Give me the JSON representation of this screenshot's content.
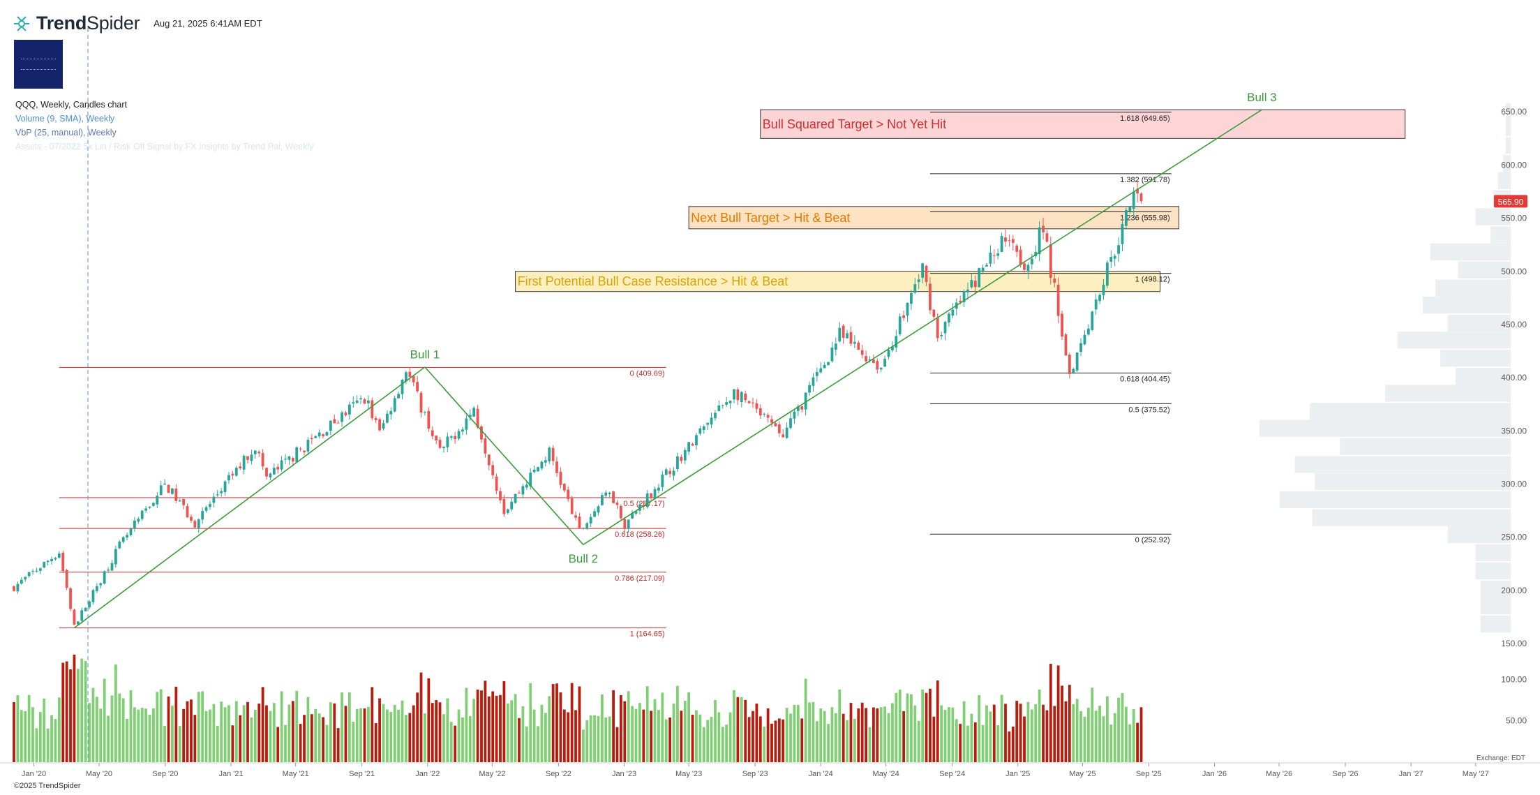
{
  "header": {
    "brand_bold": "Trend",
    "brand_light": "Spider",
    "timestamp": "Aug 21, 2025 6:41AM EDT",
    "copyright": "©2025 TrendSpider",
    "exchange": "Exchange: EDT"
  },
  "legend": {
    "chart": "QQQ, Weekly, Candles chart",
    "volume": "Volume (9, SMA), Weekly",
    "vbp": "VbP (25, manual), Weekly",
    "signal": "Assets - 07/2022 5x Lin / Risk Off Signal by FX Insights by Trend Pal, Weekly"
  },
  "colors": {
    "up": "#26a69a",
    "down": "#ef5350",
    "vol_up": "#7fcf73",
    "vol_down": "#b71c0c",
    "trend": "#3a9d3a",
    "fib_old": "#c62828",
    "fib_new": "#222222",
    "vbp": "#eceff1"
  },
  "chart_data": {
    "type": "candlestick",
    "symbol": "QQQ",
    "interval": "Weekly",
    "x_range": [
      "2019-11-25",
      "2027-07-05"
    ],
    "ylim": [
      150,
      660
    ],
    "x_ticks": [
      "Jan '20",
      "May '20",
      "Sep '20",
      "Jan '21",
      "May '21",
      "Sep '21",
      "Jan '22",
      "May '22",
      "Sep '22",
      "Jan '23",
      "May '23",
      "Sep '23",
      "Jan '24",
      "May '24",
      "Sep '24",
      "Jan '25",
      "May '25",
      "Sep '25",
      "Jan '26",
      "May '26",
      "Sep '26",
      "Jan '27",
      "May '27"
    ],
    "x_tick_dates": [
      "2020-01-01",
      "2020-05-01",
      "2020-09-01",
      "2021-01-01",
      "2021-05-01",
      "2021-09-01",
      "2022-01-01",
      "2022-05-01",
      "2022-09-01",
      "2023-01-01",
      "2023-05-01",
      "2023-09-01",
      "2024-01-01",
      "2024-05-01",
      "2024-09-01",
      "2025-01-01",
      "2025-05-01",
      "2025-09-01",
      "2026-01-01",
      "2026-05-01",
      "2026-09-01",
      "2027-01-01",
      "2027-05-01"
    ],
    "y_ticks": [
      650,
      600,
      550,
      500,
      450,
      400,
      350,
      300,
      250,
      200,
      150
    ],
    "y_tick_labels": [
      "650.00",
      "600.00",
      "550.00",
      "500.00",
      "450.00",
      "400.00",
      "350.00",
      "300.00",
      "250.00",
      "200.00",
      "150.00"
    ],
    "volume_ticks": [
      100,
      50
    ],
    "volume_tick_labels": [
      "100.00",
      "50.00"
    ],
    "volume_ylim": [
      0,
      145
    ],
    "last_price": 565.9,
    "last_price_label": "565.90",
    "price_path": [
      [
        "2019-11-25",
        203
      ],
      [
        "2020-02-17",
        236
      ],
      [
        "2020-03-16",
        166
      ],
      [
        "2020-06-08",
        242
      ],
      [
        "2020-09-01",
        300
      ],
      [
        "2020-10-26",
        263
      ],
      [
        "2021-02-15",
        336
      ],
      [
        "2021-03-08",
        306
      ],
      [
        "2021-09-07",
        382
      ],
      [
        "2021-10-04",
        348
      ],
      [
        "2021-11-22",
        408
      ],
      [
        "2022-01-24",
        330
      ],
      [
        "2022-03-28",
        370
      ],
      [
        "2022-05-23",
        275
      ],
      [
        "2022-08-15",
        330
      ],
      [
        "2022-10-10",
        255
      ],
      [
        "2022-12-05",
        295
      ],
      [
        "2023-01-02",
        262
      ],
      [
        "2023-07-24",
        387
      ],
      [
        "2023-10-23",
        345
      ],
      [
        "2024-02-05",
        440
      ],
      [
        "2024-04-22",
        410
      ],
      [
        "2024-07-08",
        503
      ],
      [
        "2024-08-05",
        440
      ],
      [
        "2024-12-16",
        538
      ],
      [
        "2025-01-13",
        505
      ],
      [
        "2025-02-17",
        540
      ],
      [
        "2025-04-07",
        405
      ],
      [
        "2025-08-11",
        580
      ],
      [
        "2025-08-18",
        565.9
      ]
    ],
    "volume_profile": [
      {
        "price": 650,
        "vol": 2
      },
      {
        "price": 635,
        "vol": 2
      },
      {
        "price": 618,
        "vol": 2
      },
      {
        "price": 601,
        "vol": 3
      },
      {
        "price": 585,
        "vol": 5
      },
      {
        "price": 568,
        "vol": 7
      },
      {
        "price": 551,
        "vol": 14
      },
      {
        "price": 534,
        "vol": 8
      },
      {
        "price": 518,
        "vol": 32
      },
      {
        "price": 501,
        "vol": 21
      },
      {
        "price": 484,
        "vol": 30
      },
      {
        "price": 468,
        "vol": 35
      },
      {
        "price": 451,
        "vol": 25
      },
      {
        "price": 435,
        "vol": 45
      },
      {
        "price": 418,
        "vol": 28
      },
      {
        "price": 401,
        "vol": 22
      },
      {
        "price": 385,
        "vol": 50
      },
      {
        "price": 368,
        "vol": 80
      },
      {
        "price": 352,
        "vol": 100
      },
      {
        "price": 335,
        "vol": 68
      },
      {
        "price": 318,
        "vol": 86
      },
      {
        "price": 302,
        "vol": 78
      },
      {
        "price": 285,
        "vol": 92
      },
      {
        "price": 268,
        "vol": 79
      },
      {
        "price": 252,
        "vol": 25
      },
      {
        "price": 235,
        "vol": 14
      },
      {
        "price": 218,
        "vol": 14
      },
      {
        "price": 201,
        "vol": 12
      },
      {
        "price": 185,
        "vol": 12
      },
      {
        "price": 168,
        "vol": 12
      }
    ],
    "fib_sets": [
      {
        "id": "fib-2022",
        "x": [
          "2020-02-17",
          "2023-03-20"
        ],
        "levels": [
          {
            "value": 409.69,
            "label": "0 (409.69)"
          },
          {
            "value": 287.17,
            "label": "0.5 (287.17)"
          },
          {
            "value": 258.26,
            "label": "0.618 (258.26)"
          },
          {
            "value": 217.09,
            "label": "0.786 (217.09)"
          },
          {
            "value": 164.65,
            "label": "1 (164.65)"
          }
        ]
      },
      {
        "id": "fib-2025",
        "x": [
          "2024-07-22",
          "2025-10-13"
        ],
        "levels": [
          {
            "value": 649.65,
            "label": "1.618 (649.65)"
          },
          {
            "value": 591.78,
            "label": "1.382 (591.78)"
          },
          {
            "value": 555.98,
            "label": "1.236 (555.98)"
          },
          {
            "value": 498.12,
            "label": "1 (498.12)"
          },
          {
            "value": 404.45,
            "label": "0.618 (404.45)"
          },
          {
            "value": 375.52,
            "label": "0.5 (375.52)"
          },
          {
            "value": 252.92,
            "label": "0 (252.92)"
          }
        ]
      }
    ],
    "trend_lines": [
      {
        "from": [
          "2020-03-16",
          164.65
        ],
        "to": [
          "2021-12-27",
          410
        ],
        "label": "Bull 1",
        "label_at": [
          "2021-12-27",
          418
        ]
      },
      {
        "from": [
          "2021-12-27",
          410
        ],
        "to": [
          "2022-10-17",
          243
        ],
        "label": "Bull 2",
        "label_at": [
          "2022-10-17",
          226
        ]
      },
      {
        "from": [
          "2022-10-17",
          243
        ],
        "to": [
          "2026-03-30",
          652
        ],
        "label": "Bull 3",
        "label_at": [
          "2026-03-30",
          660
        ]
      }
    ],
    "target_zones": [
      {
        "label": "Bull Squared Target > Not Yet Hit",
        "x": [
          "2023-09-11",
          "2026-12-21"
        ],
        "y": [
          625,
          652
        ],
        "fill": "#fdd5d7",
        "text_color": "#d32f2f"
      },
      {
        "label": "Next Bull Target > Hit & Beat",
        "x": [
          "2023-05-01",
          "2025-10-27"
        ],
        "y": [
          540,
          561
        ],
        "fill": "#fde2c4",
        "text_color": "#e07b00"
      },
      {
        "label": "First Potential Bull Case Resistance > Hit & Beat",
        "x": [
          "2022-06-13",
          "2025-09-22"
        ],
        "y": [
          481,
          500
        ],
        "fill": "#fdefc0",
        "text_color": "#d9a300"
      }
    ]
  }
}
